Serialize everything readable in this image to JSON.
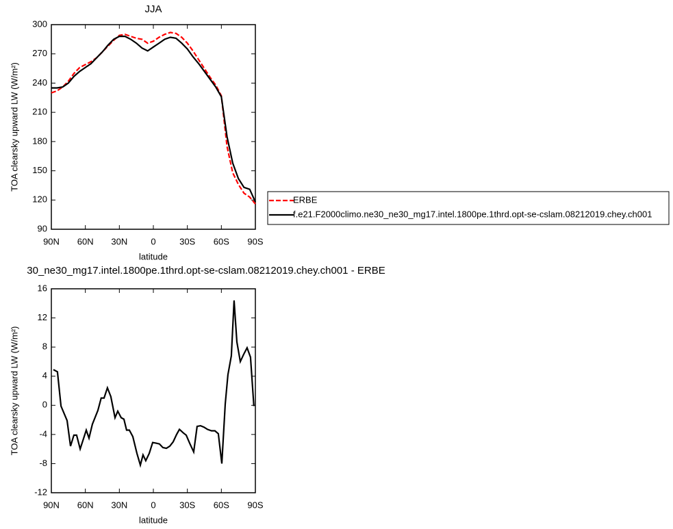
{
  "chart_data": [
    {
      "type": "line",
      "title": "JJA",
      "x_label": "latitude",
      "y_label": "TOA clearsky upward LW (W/m²)",
      "x": [
        90,
        85,
        80,
        75,
        70,
        65,
        60,
        55,
        50,
        45,
        40,
        35,
        30,
        25,
        20,
        15,
        10,
        5,
        0,
        -5,
        -10,
        -15,
        -20,
        -25,
        -30,
        -35,
        -40,
        -45,
        -50,
        -55,
        -60,
        -65,
        -70,
        -75,
        -80,
        -85,
        -90
      ],
      "series": [
        {
          "name": "ERBE",
          "color": "#ff0000",
          "line_style": "dashed",
          "values": [
            230,
            232,
            236,
            242,
            250,
            256,
            259,
            262,
            266,
            272,
            278,
            284,
            289,
            290,
            288,
            286,
            285,
            281,
            283,
            287,
            290,
            292,
            291,
            287,
            281,
            273,
            264,
            255,
            246,
            238,
            227,
            175,
            148,
            136,
            127,
            123,
            116
          ]
        },
        {
          "name": "f.e21.F2000climo.ne30_ne30_mg17.intel.1800pe.1thrd.opt-se-cslam.08212019.chey.ch001",
          "color": "#000000",
          "line_style": "solid",
          "values": [
            235,
            235,
            236,
            240,
            247,
            252,
            256,
            260,
            266,
            272,
            279,
            285,
            288,
            288,
            285,
            281,
            276,
            273,
            277,
            281,
            285,
            287,
            286,
            281,
            275,
            267,
            260,
            252,
            244,
            236,
            226,
            185,
            158,
            142,
            133,
            131,
            118
          ]
        }
      ],
      "xlim": [
        90,
        -90
      ],
      "xticks": [
        {
          "value": 90,
          "label": "90N"
        },
        {
          "value": 60,
          "label": "60N"
        },
        {
          "value": 30,
          "label": "30N"
        },
        0,
        {
          "value": -30,
          "label": "30S"
        },
        {
          "value": -60,
          "label": "60S"
        },
        {
          "value": -90,
          "label": "90S"
        }
      ],
      "ylim": [
        90,
        300
      ],
      "yticks": [
        90,
        120,
        150,
        180,
        210,
        240,
        270,
        300
      ],
      "legend": "right"
    },
    {
      "type": "line",
      "title": "30_ne30_mg17.intel.1800pe.1thrd.opt-se-cslam.08212019.chey.ch001 - ERBE",
      "x_label": "latitude",
      "y_label": "TOA clearsky upward LW (W/m²)",
      "x": [
        88.2,
        84.6,
        81.5,
        76.1,
        73.1,
        70.1,
        67.7,
        64.6,
        59.2,
        56.8,
        53.8,
        48.9,
        46.0,
        43.5,
        40.5,
        37.5,
        33.8,
        31.4,
        28.4,
        26.0,
        23.6,
        21.2,
        18.1,
        14.5,
        11.5,
        9.1,
        6.7,
        3.6,
        0.6,
        -2.4,
        -5.4,
        -8.4,
        -11.5,
        -14.5,
        -17.5,
        -20.5,
        -23.0,
        -26.5,
        -29.0,
        -32.0,
        -35.6,
        -38.6,
        -41.6,
        -44.7,
        -47.7,
        -51.3,
        -54.3,
        -57.3,
        -60.4,
        -63.4,
        -65.8,
        -68.8,
        -71.2,
        -73.7,
        -76.7,
        -79.7,
        -82.7,
        -85.7,
        -88.7
      ],
      "series": [
        {
          "color": "#000000",
          "line_style": "solid",
          "values": [
            4.9,
            4.6,
            -0.1,
            -2.1,
            -5.6,
            -4.1,
            -4.1,
            -6.0,
            -3.4,
            -4.5,
            -2.6,
            -0.7,
            1.0,
            1.0,
            2.4,
            1.2,
            -1.7,
            -0.8,
            -1.7,
            -1.9,
            -3.4,
            -3.4,
            -4.3,
            -6.6,
            -8.2,
            -6.8,
            -7.6,
            -6.6,
            -5.1,
            -5.2,
            -5.3,
            -5.8,
            -5.9,
            -5.6,
            -5.0,
            -4.0,
            -3.3,
            -3.8,
            -4.1,
            -5.2,
            -6.4,
            -2.9,
            -2.8,
            -3.0,
            -3.3,
            -3.5,
            -3.5,
            -3.9,
            -8.0,
            0.2,
            4.2,
            6.8,
            14.4,
            8.7,
            6.0,
            7.0,
            7.9,
            6.6,
            -0.1
          ]
        }
      ],
      "xlim": [
        90,
        -90
      ],
      "xticks": [
        {
          "value": 90,
          "label": "90N"
        },
        {
          "value": 60,
          "label": "60N"
        },
        {
          "value": 30,
          "label": "30N"
        },
        0,
        {
          "value": -30,
          "label": "30S"
        },
        {
          "value": -60,
          "label": "60S"
        },
        {
          "value": -90,
          "label": "90S"
        }
      ],
      "ylim": [
        -12,
        16
      ],
      "yticks": [
        -12,
        -8,
        -4,
        0,
        4,
        8,
        12,
        16
      ]
    }
  ]
}
